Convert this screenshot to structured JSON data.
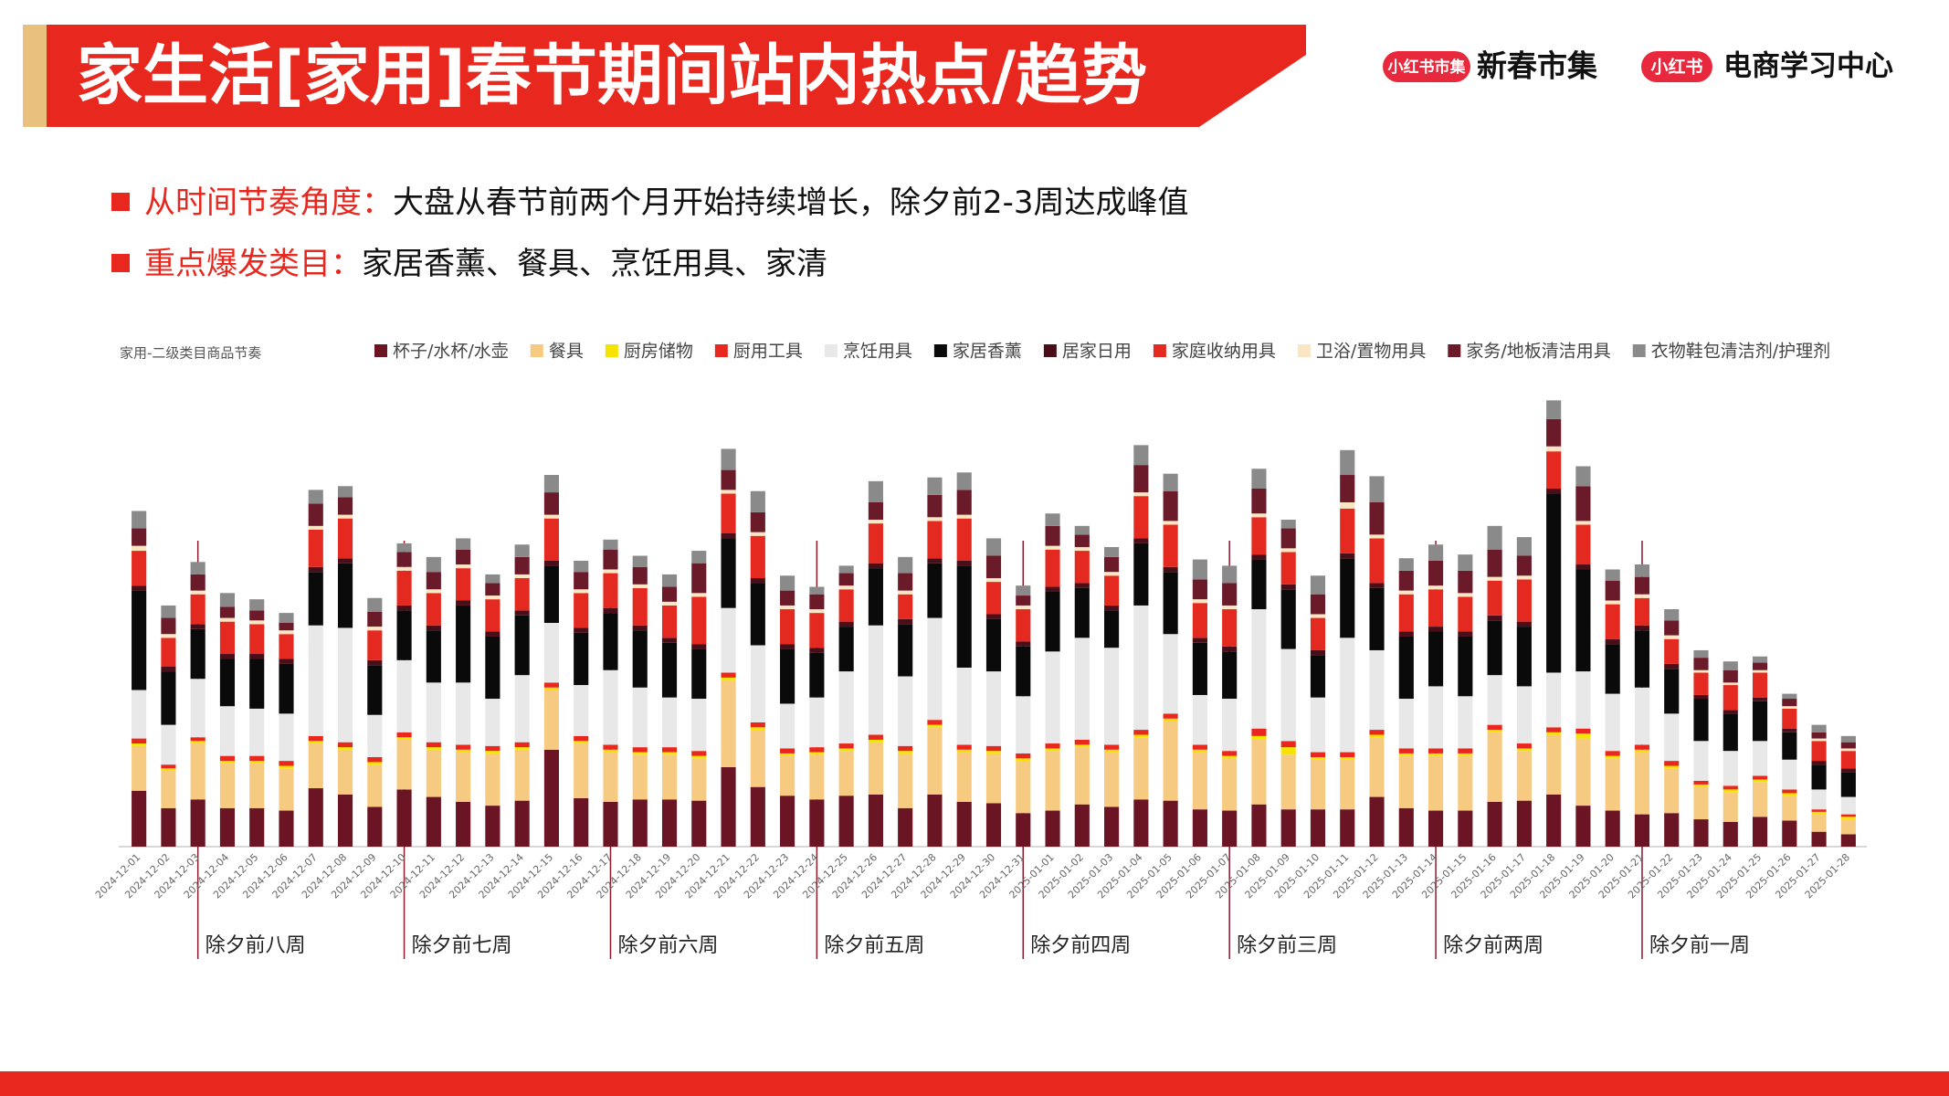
{
  "header": {
    "title": "家生活[家用]春节期间站内热点/趋势",
    "logo1_badge": "小红书市集",
    "logo1_text": "新春市集",
    "logo2_badge": "小红书",
    "logo2_text": "电商学习中心"
  },
  "bullets": [
    {
      "label": "从时间节奏角度：",
      "text": "大盘从春节前两个月开始持续增长，除夕前2-3周达成峰值"
    },
    {
      "label": "重点爆发类目：",
      "text": "家居香薰、餐具、烹饪用具、家清"
    }
  ],
  "chart_data": {
    "type": "stacked_bar",
    "title": "家用-二级类目商品节奏",
    "ylim": [
      0,
      360
    ],
    "categories": [
      "2024-12-01",
      "2024-12-02",
      "2024-12-03",
      "2024-12-04",
      "2024-12-05",
      "2024-12-06",
      "2024-12-07",
      "2024-12-08",
      "2024-12-09",
      "2024-12-10",
      "2024-12-11",
      "2024-12-12",
      "2024-12-13",
      "2024-12-14",
      "2024-12-15",
      "2024-12-16",
      "2024-12-17",
      "2024-12-18",
      "2024-12-19",
      "2024-12-20",
      "2024-12-21",
      "2024-12-22",
      "2024-12-23",
      "2024-12-24",
      "2024-12-25",
      "2024-12-26",
      "2024-12-27",
      "2024-12-28",
      "2024-12-29",
      "2024-12-30",
      "2024-12-31",
      "2025-01-01",
      "2025-01-02",
      "2025-01-03",
      "2025-01-04",
      "2025-01-05",
      "2025-01-06",
      "2025-01-07",
      "2025-01-08",
      "2025-01-09",
      "2025-01-10",
      "2025-01-11",
      "2025-01-12",
      "2025-01-13",
      "2025-01-14",
      "2025-01-15",
      "2025-01-16",
      "2025-01-17",
      "2025-01-18",
      "2025-01-19",
      "2025-01-20",
      "2025-01-21",
      "2025-01-22",
      "2025-01-23",
      "2025-01-24",
      "2025-01-25",
      "2025-01-26",
      "2025-01-27",
      "2025-01-28"
    ],
    "series": [
      {
        "name": "杯子/水杯/水壶",
        "color": "#6b1424",
        "values": [
          45,
          31,
          38,
          31,
          31,
          29,
          47,
          42,
          32,
          46,
          40,
          36,
          33,
          37,
          78,
          39,
          36,
          38,
          38,
          37,
          64,
          48,
          41,
          38,
          41,
          42,
          31,
          42,
          36,
          35,
          27,
          29,
          34,
          32,
          38,
          37,
          30,
          29,
          34,
          30,
          30,
          30,
          40,
          31,
          29,
          29,
          36,
          37,
          42,
          33,
          29,
          26,
          27,
          22,
          20,
          24,
          21,
          12,
          10
        ]
      },
      {
        "name": "餐具",
        "color": "#f6ca80",
        "values": [
          36,
          30,
          45,
          36,
          36,
          34,
          36,
          36,
          34,
          40,
          38,
          40,
          42,
          41,
          48,
          44,
          40,
          36,
          36,
          34,
          70,
          46,
          32,
          36,
          36,
          42,
          44,
          54,
          40,
          40,
          42,
          48,
          46,
          44,
          50,
          64,
          46,
          42,
          52,
          44,
          40,
          40,
          48,
          42,
          44,
          44,
          56,
          40,
          48,
          54,
          42,
          50,
          36,
          26,
          24,
          28,
          20,
          14,
          12
        ]
      },
      {
        "name": "厨房储物",
        "color": "#f5e400",
        "values": [
          2,
          2,
          2,
          2,
          2,
          2,
          2,
          2,
          2,
          2,
          2,
          2,
          2,
          2,
          2,
          2,
          2,
          2,
          2,
          2,
          2,
          2,
          2,
          2,
          2,
          2,
          2,
          2,
          2,
          2,
          2,
          2,
          2,
          2,
          2,
          2,
          2,
          2,
          3,
          6,
          2,
          2,
          2,
          2,
          2,
          2,
          2,
          2,
          2,
          4,
          2,
          2,
          2,
          2,
          2,
          2,
          2,
          2,
          2
        ]
      },
      {
        "name": "厨用工具",
        "color": "#e8281e",
        "values": [
          4,
          3,
          3,
          4,
          4,
          4,
          4,
          4,
          4,
          4,
          4,
          4,
          4,
          4,
          4,
          4,
          4,
          4,
          4,
          4,
          4,
          4,
          4,
          4,
          4,
          4,
          4,
          4,
          4,
          4,
          4,
          4,
          4,
          4,
          4,
          4,
          4,
          4,
          6,
          5,
          4,
          4,
          4,
          4,
          4,
          4,
          4,
          4,
          4,
          4,
          4,
          4,
          4,
          3,
          3,
          3,
          3,
          2,
          2
        ]
      },
      {
        "name": "烹饪用具",
        "color": "#e8e8e8",
        "values": [
          39,
          32,
          47,
          40,
          38,
          38,
          89,
          92,
          34,
          58,
          48,
          50,
          38,
          54,
          48,
          41,
          60,
          48,
          40,
          42,
          52,
          62,
          36,
          40,
          58,
          88,
          56,
          82,
          62,
          60,
          46,
          74,
          82,
          78,
          100,
          64,
          40,
          42,
          96,
          74,
          44,
          92,
          64,
          40,
          50,
          42,
          40,
          46,
          44,
          46,
          46,
          46,
          38,
          32,
          28,
          28,
          24,
          16,
          14
        ]
      },
      {
        "name": "家居香薰",
        "color": "#0a0a0a",
        "values": [
          80,
          43,
          40,
          38,
          40,
          40,
          43,
          52,
          40,
          40,
          42,
          62,
          50,
          48,
          46,
          42,
          46,
          46,
          44,
          40,
          56,
          50,
          44,
          36,
          36,
          46,
          42,
          44,
          82,
          42,
          40,
          48,
          40,
          30,
          50,
          50,
          42,
          38,
          40,
          48,
          34,
          64,
          50,
          50,
          44,
          48,
          44,
          48,
          144,
          82,
          40,
          46,
          36,
          34,
          30,
          32,
          22,
          20,
          20
        ]
      },
      {
        "name": "居家日用",
        "color": "#4a0e18",
        "values": [
          4,
          4,
          4,
          4,
          4,
          4,
          4,
          4,
          4,
          4,
          4,
          4,
          4,
          4,
          4,
          4,
          4,
          4,
          4,
          4,
          4,
          4,
          4,
          4,
          4,
          4,
          4,
          4,
          4,
          4,
          4,
          4,
          4,
          4,
          4,
          4,
          4,
          4,
          4,
          4,
          4,
          4,
          4,
          4,
          4,
          4,
          4,
          4,
          4,
          4,
          4,
          4,
          4,
          3,
          3,
          3,
          3,
          3,
          3
        ]
      },
      {
        "name": "家庭收纳用具",
        "color": "#e42a20",
        "values": [
          28,
          23,
          24,
          26,
          24,
          20,
          30,
          32,
          24,
          28,
          26,
          26,
          26,
          26,
          34,
          28,
          28,
          30,
          26,
          38,
          32,
          34,
          28,
          28,
          26,
          32,
          20,
          30,
          34,
          26,
          26,
          30,
          26,
          24,
          34,
          34,
          28,
          30,
          30,
          26,
          26,
          36,
          36,
          30,
          30,
          28,
          28,
          34,
          30,
          32,
          28,
          22,
          20,
          18,
          20,
          20,
          16,
          16,
          14
        ]
      },
      {
        "name": "卫浴/置物用具",
        "color": "#fbe6c4",
        "values": [
          4,
          3,
          3,
          3,
          3,
          3,
          3,
          3,
          3,
          3,
          3,
          3,
          3,
          3,
          3,
          3,
          3,
          3,
          3,
          3,
          3,
          3,
          3,
          3,
          3,
          3,
          3,
          3,
          3,
          3,
          3,
          3,
          3,
          3,
          3,
          3,
          3,
          3,
          3,
          3,
          3,
          5,
          3,
          3,
          3,
          3,
          3,
          3,
          4,
          3,
          3,
          3,
          3,
          2,
          2,
          2,
          2,
          2,
          2
        ]
      },
      {
        "name": "家务/地板清洁用具",
        "color": "#6b1a2a",
        "values": [
          14,
          13,
          13,
          9,
          8,
          6,
          18,
          14,
          12,
          12,
          14,
          12,
          10,
          14,
          18,
          14,
          16,
          14,
          12,
          24,
          16,
          16,
          12,
          12,
          10,
          14,
          14,
          18,
          20,
          18,
          8,
          16,
          10,
          12,
          22,
          24,
          16,
          18,
          20,
          16,
          16,
          22,
          26,
          16,
          20,
          18,
          22,
          16,
          22,
          28,
          16,
          14,
          12,
          10,
          10,
          6,
          6,
          5,
          5
        ]
      },
      {
        "name": "衣物鞋包清洁剂/护理剂",
        "color": "#8a8a8a",
        "values": [
          14,
          10,
          10,
          11,
          9,
          8,
          11,
          9,
          11,
          7,
          12,
          9,
          7,
          10,
          14,
          9,
          8,
          9,
          10,
          10,
          17,
          17,
          12,
          6,
          6,
          17,
          13,
          14,
          14,
          14,
          8,
          10,
          7,
          8,
          16,
          14,
          16,
          14,
          16,
          7,
          15,
          20,
          21,
          10,
          13,
          13,
          19,
          15,
          15,
          16,
          9,
          10,
          9,
          6,
          7,
          5,
          4,
          6,
          5
        ]
      }
    ],
    "annotations": [
      {
        "text": "除夕前八周",
        "x": "2024-12-03"
      },
      {
        "text": "除夕前七周",
        "x": "2024-12-10"
      },
      {
        "text": "除夕前六周",
        "x": "2024-12-17"
      },
      {
        "text": "除夕前五周",
        "x": "2024-12-24"
      },
      {
        "text": "除夕前四周",
        "x": "2024-12-31"
      },
      {
        "text": "除夕前三周",
        "x": "2025-01-07"
      },
      {
        "text": "除夕前两周",
        "x": "2025-01-14"
      },
      {
        "text": "除夕前一周",
        "x": "2025-01-21"
      }
    ]
  }
}
